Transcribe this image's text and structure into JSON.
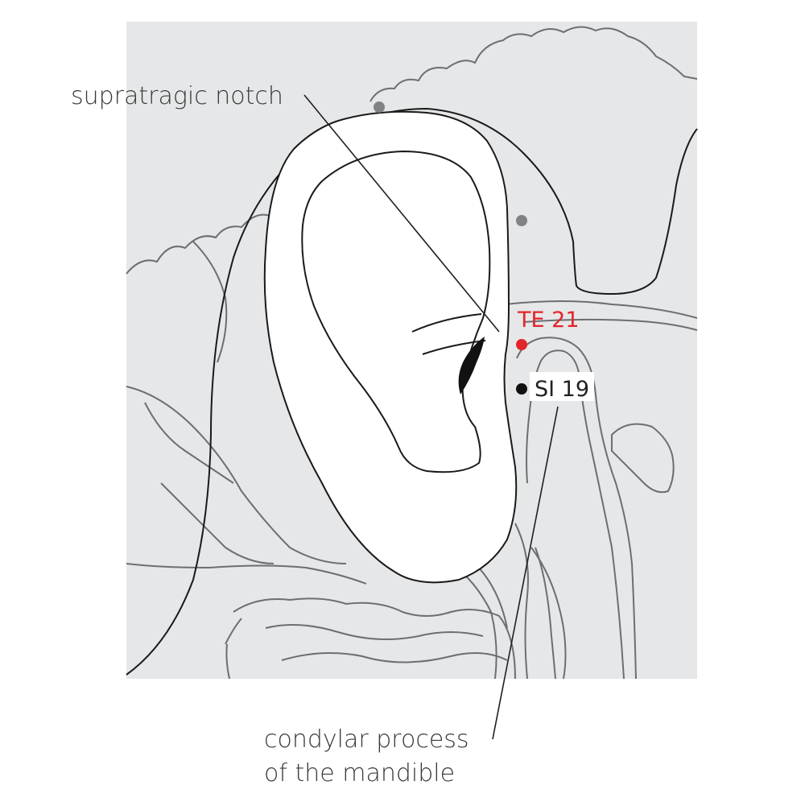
{
  "callouts": {
    "supratragic": "supratragic notch",
    "condylar_line1": "condylar process",
    "condylar_line2": "of the mandible"
  },
  "points": {
    "te21": {
      "label": "TE 21",
      "color": "#e3242b"
    },
    "si19": {
      "label": "SI 19",
      "color": "#111111"
    }
  },
  "colors": {
    "background_panel": "#e6e7e8",
    "bone_outline": "#6d6e70",
    "skin_outline": "#1a1a1a",
    "reference_point": "#808285"
  }
}
